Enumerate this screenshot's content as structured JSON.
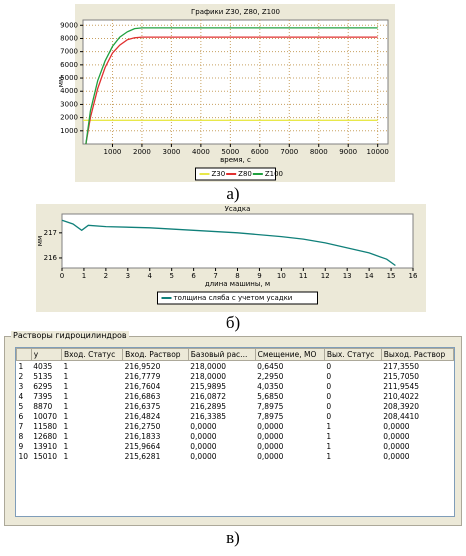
{
  "chart_data": [
    {
      "type": "line",
      "title": "Графики Z30, Z80, Z100",
      "y_label": "мм",
      "x_label": "время, с",
      "xlim": [
        0,
        10350
      ],
      "xticks": [
        1000,
        2000,
        3000,
        4000,
        5000,
        6000,
        7000,
        8000,
        9000,
        10000
      ],
      "ylim": [
        0,
        9400
      ],
      "yticks": [
        1000,
        2000,
        3000,
        4000,
        5000,
        6000,
        7000,
        8000,
        9000
      ],
      "grid": true,
      "series": [
        {
          "name": "Z30",
          "color": "#e8e84a",
          "x": [
            0,
            10000
          ],
          "values": [
            1800,
            1800
          ]
        },
        {
          "name": "Z80",
          "color": "#e03030",
          "x": [
            100,
            250,
            500,
            750,
            1000,
            1250,
            1500,
            1750,
            2000,
            10000
          ],
          "values": [
            0,
            2000,
            4200,
            5800,
            6900,
            7500,
            7900,
            8050,
            8100,
            8100
          ]
        },
        {
          "name": "Z100",
          "color": "#20a040",
          "x": [
            100,
            250,
            500,
            750,
            1000,
            1250,
            1500,
            1750,
            2000,
            10000
          ],
          "values": [
            0,
            2500,
            4800,
            6300,
            7400,
            8100,
            8500,
            8750,
            8800,
            8800
          ]
        }
      ]
    },
    {
      "type": "line",
      "title": "Усадка",
      "y_label": "мм",
      "x_label": "длина машины, м",
      "xlim": [
        0,
        16
      ],
      "xticks": [
        0,
        1,
        2,
        3,
        4,
        5,
        6,
        7,
        8,
        9,
        10,
        11,
        12,
        13,
        14,
        15,
        16
      ],
      "ylim": [
        215.6,
        217.75
      ],
      "yticks": [
        216,
        217
      ],
      "grid": false,
      "series": [
        {
          "name": "толщина сляба с учетом усадки",
          "color": "#10807a",
          "x": [
            0,
            0.5,
            0.9,
            1.2,
            2,
            4,
            6,
            8,
            10,
            11,
            12,
            13,
            14,
            14.8,
            15.2
          ],
          "values": [
            217.5,
            217.35,
            217.1,
            217.3,
            217.25,
            217.2,
            217.1,
            217.0,
            216.85,
            216.75,
            216.6,
            216.4,
            216.2,
            215.95,
            215.7
          ]
        }
      ]
    }
  ],
  "captions": [
    "а)",
    "б)",
    "в)"
  ],
  "table": {
    "title": "Растворы гидроцилиндров",
    "header": [
      "",
      "y",
      "Вход. Статус",
      "Вход. Раствор",
      "Базовый рас...",
      "Смещение, МО",
      "Вых. Статус",
      "Выход. Раствор"
    ],
    "rows": [
      [
        "1",
        "4035",
        "1",
        "216,9520",
        "218,0000",
        "0,6450",
        "0",
        "217,3550"
      ],
      [
        "2",
        "5135",
        "1",
        "216,7779",
        "218,0000",
        "2,2950",
        "0",
        "215,7050"
      ],
      [
        "3",
        "6295",
        "1",
        "216,7604",
        "215,9895",
        "4,0350",
        "0",
        "211,9545"
      ],
      [
        "4",
        "7395",
        "1",
        "216,6863",
        "216,0872",
        "5,6850",
        "0",
        "210,4022"
      ],
      [
        "5",
        "8870",
        "1",
        "216,6375",
        "216,2895",
        "7,8975",
        "0",
        "208,3920"
      ],
      [
        "6",
        "10070",
        "1",
        "216,4824",
        "216,3385",
        "7,8975",
        "0",
        "208,4410"
      ],
      [
        "7",
        "11580",
        "1",
        "216,2750",
        "0,0000",
        "0,0000",
        "1",
        "0,0000"
      ],
      [
        "8",
        "12680",
        "1",
        "216,1833",
        "0,0000",
        "0,0000",
        "1",
        "0,0000"
      ],
      [
        "9",
        "13910",
        "1",
        "215,9664",
        "0,0000",
        "0,0000",
        "1",
        "0,0000"
      ],
      [
        "10",
        "15010",
        "1",
        "215,6281",
        "0,0000",
        "0,0000",
        "1",
        "0,0000"
      ]
    ]
  }
}
